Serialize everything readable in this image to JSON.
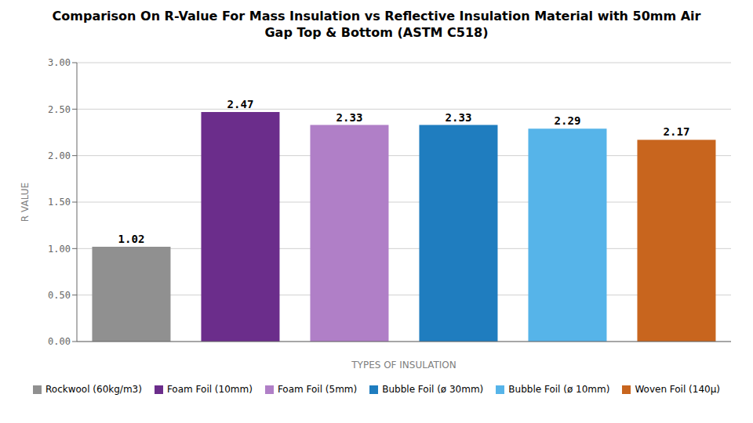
{
  "chart_data": {
    "type": "bar",
    "title": "Comparison On R-Value For Mass Insulation vs Reflective Insulation Material with 50mm Air\nGap Top & Bottom (ASTM  C518)",
    "xlabel": "TYPES OF INSULATION",
    "ylabel": "R VALUE",
    "categories": [
      "Rockwool (60kg/m3)",
      "Foam Foil (10mm)",
      "Foam Foil (5mm)",
      "Bubble Foil (ø 30mm)",
      "Bubble Foil (ø 10mm)",
      "Woven Foil (140μ)"
    ],
    "values": [
      1.02,
      2.47,
      2.33,
      2.33,
      2.29,
      2.17
    ],
    "colors": [
      "#909090",
      "#6b2d8b",
      "#b07fc7",
      "#1f7dbf",
      "#56b4e9",
      "#c8651e"
    ],
    "ylim": [
      0,
      3.0
    ],
    "yticks": [
      {
        "value": 0.0,
        "label": "0.00"
      },
      {
        "value": 0.5,
        "label": "0.50"
      },
      {
        "value": 1.0,
        "label": "1.00"
      },
      {
        "value": 1.5,
        "label": "1.50"
      },
      {
        "value": 2.0,
        "label": "2.00"
      },
      {
        "value": 2.5,
        "label": "2.50"
      },
      {
        "value": 3.0,
        "label": "3.00"
      }
    ],
    "grid": true,
    "legend": "bottom",
    "data_labels": true,
    "tick_labels": "y"
  }
}
